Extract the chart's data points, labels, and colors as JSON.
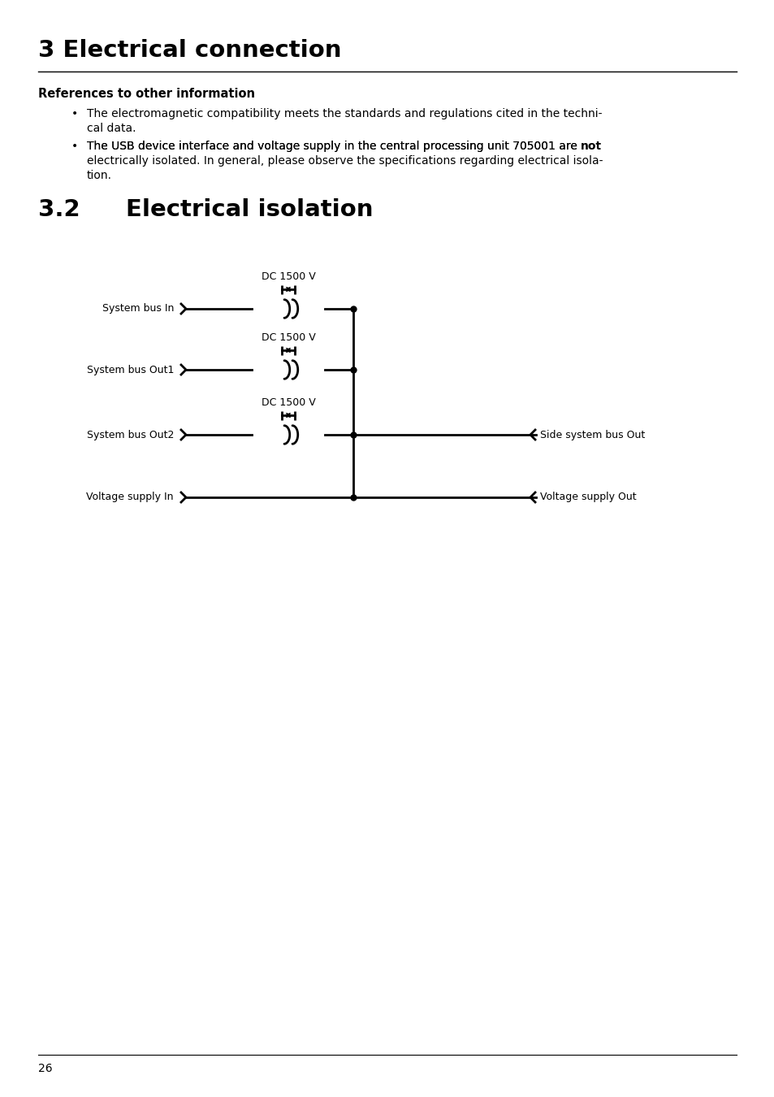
{
  "title": "3 Electrical connection",
  "section": "3.2",
  "section_title": "Electrical isolation",
  "ref_header": "References to other information",
  "bullet1_line1": "The electromagnetic compatibility meets the standards and regulations cited in the techni-",
  "bullet1_line2": "cal data.",
  "bullet2_line1_pre": "The USB device interface and voltage supply in the central processing unit 705001 are ",
  "bullet2_bold": "not",
  "bullet2_line2": "electrically isolated. In general, please observe the specifications regarding electrical isola-",
  "bullet2_line3": "tion.",
  "page_number": "26",
  "bg_color": "#ffffff",
  "text_color": "#000000",
  "dc_label": "DC 1500 V",
  "left_labels": [
    "System bus In",
    "System bus Out1",
    "System bus Out2",
    "Voltage supply In"
  ],
  "right_labels": [
    "",
    "",
    "Side system bus Out",
    "Voltage supply Out"
  ],
  "has_transformer": [
    true,
    true,
    true,
    false
  ]
}
